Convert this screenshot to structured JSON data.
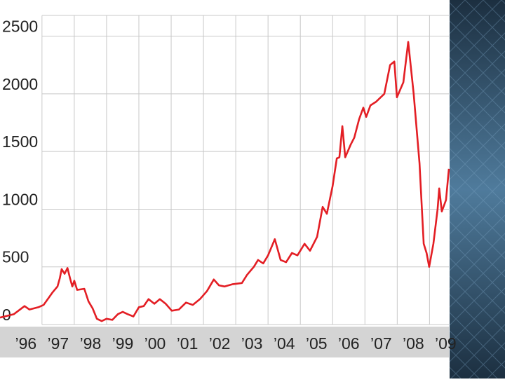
{
  "chart_data": {
    "type": "line",
    "x": [
      1995.7,
      1996.13,
      1996.46,
      1996.61,
      1996.89,
      1997.05,
      1997.18,
      1997.33,
      1997.48,
      1997.55,
      1997.61,
      1997.7,
      1997.79,
      1997.87,
      1997.94,
      1998.0,
      1998.09,
      1998.31,
      1998.44,
      1998.57,
      1998.7,
      1998.85,
      1999.0,
      1999.18,
      1999.35,
      1999.5,
      1999.65,
      1999.83,
      2000.0,
      2000.15,
      2000.3,
      2000.48,
      2000.65,
      2000.83,
      2001.02,
      2001.24,
      2001.46,
      2001.67,
      2001.89,
      2002.11,
      2002.32,
      2002.48,
      2002.65,
      2002.91,
      2003.19,
      2003.35,
      2003.56,
      2003.69,
      2003.85,
      2004.0,
      2004.21,
      2004.39,
      2004.56,
      2004.74,
      2004.91,
      2005.13,
      2005.3,
      2005.52,
      2005.69,
      2005.82,
      2006.0,
      2006.13,
      2006.21,
      2006.3,
      2006.39,
      2006.56,
      2006.67,
      2006.82,
      2006.95,
      2007.04,
      2007.17,
      2007.34,
      2007.6,
      2007.78,
      2007.91,
      2007.99,
      2008.19,
      2008.34,
      2008.51,
      2008.69,
      2008.82,
      2008.91,
      2008.99,
      2009.12,
      2009.25,
      2009.3,
      2009.38,
      2009.51,
      2009.6
    ],
    "series": [
      {
        "color": "#e31e24",
        "values": [
          60,
          90,
          160,
          130,
          150,
          170,
          220,
          280,
          330,
          400,
          480,
          440,
          490,
          400,
          330,
          380,
          300,
          310,
          200,
          140,
          50,
          30,
          50,
          40,
          90,
          110,
          90,
          70,
          150,
          160,
          220,
          180,
          220,
          180,
          120,
          130,
          190,
          170,
          220,
          290,
          390,
          340,
          330,
          350,
          360,
          430,
          500,
          560,
          530,
          600,
          740,
          560,
          540,
          620,
          600,
          700,
          640,
          760,
          1020,
          960,
          1200,
          1440,
          1450,
          1720,
          1450,
          1560,
          1620,
          1780,
          1880,
          1800,
          1900,
          1930,
          2000,
          2250,
          2280,
          1970,
          2100,
          2450,
          2000,
          1400,
          700,
          620,
          500,
          700,
          1000,
          1180,
          980,
          1080,
          1350
        ]
      }
    ],
    "xlim": [
      1995.7,
      2009.6
    ],
    "xticks": [
      {
        "value": 1996.5,
        "label": "’96"
      },
      {
        "value": 1997.5,
        "label": "’97"
      },
      {
        "value": 1998.5,
        "label": "’98"
      },
      {
        "value": 1999.5,
        "label": "’99"
      },
      {
        "value": 2000.5,
        "label": "’00"
      },
      {
        "value": 2001.5,
        "label": "’01"
      },
      {
        "value": 2002.5,
        "label": "’02"
      },
      {
        "value": 2003.5,
        "label": "’03"
      },
      {
        "value": 2004.5,
        "label": "’04"
      },
      {
        "value": 2005.5,
        "label": "’05"
      },
      {
        "value": 2006.5,
        "label": "’06"
      },
      {
        "value": 2007.5,
        "label": "’07"
      },
      {
        "value": 2008.5,
        "label": "’08"
      },
      {
        "value": 2009.5,
        "label": "’09"
      }
    ],
    "xgrid": [
      1997,
      1998,
      1999,
      2000,
      2001,
      2002,
      2003,
      2004,
      2005,
      2006,
      2007,
      2008,
      2009
    ],
    "ylim": [
      0,
      2680
    ],
    "yticks": [
      0,
      500,
      1000,
      1500,
      2000,
      2500
    ],
    "grid": true
  }
}
